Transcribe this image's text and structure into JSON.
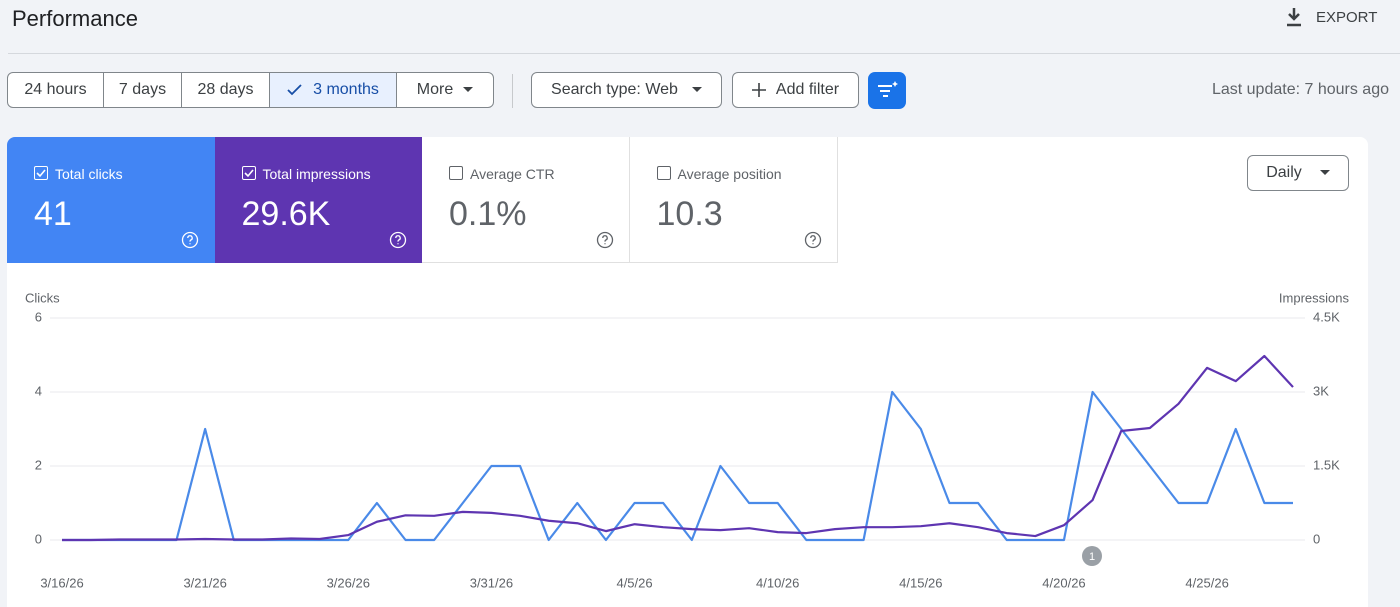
{
  "header": {
    "title": "Performance",
    "export": "EXPORT"
  },
  "toolbar": {
    "ranges": [
      "24 hours",
      "7 days",
      "28 days",
      "3 months",
      "More"
    ],
    "selected_range": 3,
    "search_type": "Search type: Web",
    "add_filter": "Add filter",
    "last_update": "Last update: 7 hours ago"
  },
  "metrics": [
    {
      "label": "Total clicks",
      "value": "41",
      "checked": true,
      "color": "#4285f4"
    },
    {
      "label": "Total impressions",
      "value": "29.6K",
      "checked": true,
      "color": "#5e35b1"
    },
    {
      "label": "Average CTR",
      "value": "0.1%",
      "checked": false,
      "color": "#ffffff"
    },
    {
      "label": "Average position",
      "value": "10.3",
      "checked": false,
      "color": "#ffffff"
    }
  ],
  "granularity": "Daily",
  "chart_data": {
    "type": "line",
    "categories": [
      "3/16/26",
      null,
      null,
      null,
      null,
      "3/21/26",
      null,
      null,
      null,
      null,
      "3/26/26",
      null,
      null,
      null,
      null,
      "3/31/26",
      null,
      null,
      null,
      null,
      "4/5/26",
      null,
      null,
      null,
      null,
      "4/10/26",
      null,
      null,
      null,
      null,
      "4/15/26",
      null,
      null,
      null,
      null,
      "4/20/26",
      null,
      null,
      null,
      null,
      "4/25/26",
      null,
      null,
      null
    ],
    "ylabel": "Clicks",
    "y2label": "Impressions",
    "series": [
      {
        "color": "#4a8ae8",
        "values": [
          0,
          0,
          0,
          0,
          0,
          3,
          0,
          0,
          0,
          0,
          0,
          1,
          0,
          0,
          1,
          2,
          2,
          0,
          1,
          0,
          1,
          1,
          0,
          2,
          1,
          1,
          0,
          0,
          0,
          4,
          3,
          1,
          1,
          0,
          0,
          0,
          4,
          3,
          2,
          1,
          1,
          3,
          1,
          1
        ]
      },
      {
        "color": "#5e35b1",
        "axis": "y2",
        "values": [
          0,
          0,
          10,
          10,
          10,
          20,
          10,
          10,
          30,
          20,
          100,
          370,
          500,
          490,
          570,
          550,
          490,
          390,
          340,
          180,
          320,
          260,
          220,
          200,
          240,
          160,
          140,
          220,
          260,
          260,
          280,
          340,
          260,
          140,
          80,
          300,
          810,
          2210,
          2270,
          2760,
          3490,
          3220,
          3730,
          3100
        ]
      }
    ],
    "ylim": [
      0,
      6
    ],
    "yticks": [
      0,
      2,
      4,
      6
    ],
    "y2lim": [
      0,
      4500
    ],
    "y2ticks": [
      0,
      {
        "value": 1500,
        "label": "1.5K"
      },
      {
        "value": 3000,
        "label": "3K"
      },
      {
        "value": 4500,
        "label": "4.5K"
      }
    ],
    "annotations": [
      {
        "label": "1"
      }
    ]
  }
}
